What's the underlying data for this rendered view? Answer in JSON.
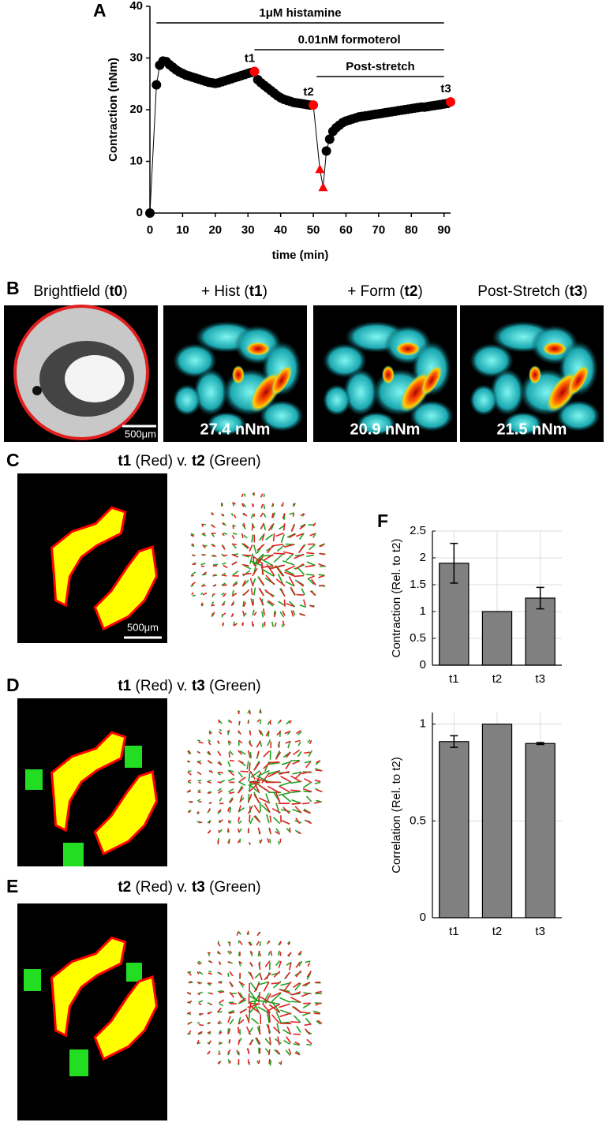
{
  "panel_labels": [
    "A",
    "B",
    "C",
    "D",
    "E",
    "F"
  ],
  "chart_data": [
    {
      "type": "line",
      "xlabel": "time (min)",
      "ylabel": "Contraction (nNm)",
      "xlim": [
        0,
        92
      ],
      "ylim": [
        0,
        40
      ],
      "xticks": [
        0,
        10,
        20,
        30,
        40,
        50,
        60,
        70,
        80,
        90
      ],
      "yticks": [
        0,
        10,
        20,
        30,
        40
      ],
      "line_color": "#000000",
      "series": [
        {
          "color": "#000000",
          "marker": "circle",
          "x": [
            0,
            2,
            3,
            4,
            5,
            6,
            7,
            8,
            9,
            10,
            11,
            12,
            13,
            14,
            15,
            16,
            17,
            18,
            19,
            20,
            21,
            22,
            23,
            24,
            25,
            26,
            27,
            28,
            29,
            30,
            31,
            33,
            34,
            35,
            36,
            37,
            38,
            39,
            40,
            41,
            42,
            43,
            44,
            45,
            46,
            47,
            48,
            49,
            54,
            55,
            56,
            57,
            58,
            59,
            60,
            61,
            62,
            63,
            64,
            65,
            66,
            67,
            68,
            69,
            70,
            71,
            72,
            73,
            74,
            75,
            76,
            77,
            78,
            79,
            80,
            81,
            82,
            83,
            84,
            85,
            86,
            87,
            88,
            89,
            90,
            91
          ],
          "values": [
            0,
            24.8,
            28.6,
            29.4,
            29.3,
            28.7,
            28.2,
            27.7,
            27.3,
            27.0,
            26.7,
            26.5,
            26.3,
            26.1,
            25.9,
            25.7,
            25.5,
            25.3,
            25.2,
            25.1,
            25.2,
            25.4,
            25.6,
            25.8,
            26.0,
            26.2,
            26.4,
            26.6,
            26.8,
            27.0,
            27.2,
            25.8,
            25.2,
            24.7,
            24.2,
            23.7,
            23.2,
            22.7,
            22.3,
            22.0,
            21.8,
            21.6,
            21.4,
            21.3,
            21.2,
            21.1,
            21.0,
            20.9,
            12.0,
            14.3,
            15.8,
            16.5,
            17.0,
            17.5,
            17.8,
            18.0,
            18.2,
            18.4,
            18.6,
            18.7,
            18.8,
            18.9,
            19.0,
            19.1,
            19.2,
            19.3,
            19.4,
            19.5,
            19.6,
            19.7,
            19.8,
            19.9,
            20.0,
            20.1,
            20.2,
            20.3,
            20.4,
            20.5,
            20.5,
            20.6,
            20.7,
            20.8,
            20.9,
            21.0,
            21.1,
            21.2
          ]
        },
        {
          "color": "#ff0000",
          "marker": "circle",
          "x": [
            32,
            50,
            92
          ],
          "values": [
            27.4,
            20.9,
            21.5
          ],
          "point_labels": [
            "t1",
            "t2",
            "t3"
          ]
        },
        {
          "color": "#ff0000",
          "marker": "triangle",
          "x": [
            52,
            53
          ],
          "values": [
            8.5,
            5
          ]
        }
      ],
      "treatments": [
        {
          "text": "1μM histamine",
          "start": 2,
          "end": 90
        },
        {
          "text": "0.01nM formoterol",
          "start": 32,
          "end": 90
        },
        {
          "text": "Post-stretch",
          "start": 51,
          "end": 90
        }
      ]
    },
    {
      "type": "bar",
      "ylabel": "Contraction (Rel. to t2)",
      "categories": [
        "t1",
        "t2",
        "t3"
      ],
      "values": [
        1.9,
        1,
        1.25
      ],
      "errors": [
        0.37,
        null,
        0.2
      ],
      "color": "#808080",
      "ylim": [
        0,
        2.5
      ],
      "yticks": [
        0,
        0.5,
        1,
        1.5,
        2,
        2.5
      ],
      "grid": true
    },
    {
      "type": "bar",
      "ylabel": "Correlation (Rel. to t2)",
      "categories": [
        "t1",
        "t2",
        "t3"
      ],
      "values": [
        0.91,
        1,
        0.9
      ],
      "errors": [
        0.03,
        null,
        0.005
      ],
      "color": "#808080",
      "ylim": [
        0,
        1.06
      ],
      "yticks": [
        0,
        0.5,
        1
      ],
      "grid": true
    }
  ],
  "panel_b": {
    "captions": [
      [
        {
          "text": "Brightfield ("
        },
        {
          "text": "t0",
          "bold": true
        },
        {
          "text": ")"
        }
      ],
      [
        {
          "text": "+ Hist ("
        },
        {
          "text": "t1",
          "bold": true
        },
        {
          "text": ")"
        }
      ],
      [
        {
          "text": "+ Form ("
        },
        {
          "text": "t2",
          "bold": true
        },
        {
          "text": ")"
        }
      ],
      [
        {
          "text": "Post-Stretch ("
        },
        {
          "text": "t3",
          "bold": true
        },
        {
          "text": ")"
        }
      ]
    ],
    "scale_bar": "500μm",
    "force_labels": [
      "27.4 nNm",
      "20.9 nNm",
      "21.5 nNm"
    ]
  },
  "comparisons": [
    [
      {
        "text": "t1",
        "bold": true
      },
      {
        "text": " (Red) v. "
      },
      {
        "text": "t2",
        "bold": true
      },
      {
        "text": " (Green)"
      }
    ],
    [
      {
        "text": "t1",
        "bold": true
      },
      {
        "text": " (Red) v. "
      },
      {
        "text": "t3",
        "bold": true
      },
      {
        "text": " (Green)"
      }
    ],
    [
      {
        "text": "t2",
        "bold": true
      },
      {
        "text": " (Red) v. "
      },
      {
        "text": "t3",
        "bold": true
      },
      {
        "text": " (Green)"
      }
    ]
  ],
  "comparison_scale_bar": "500μm"
}
